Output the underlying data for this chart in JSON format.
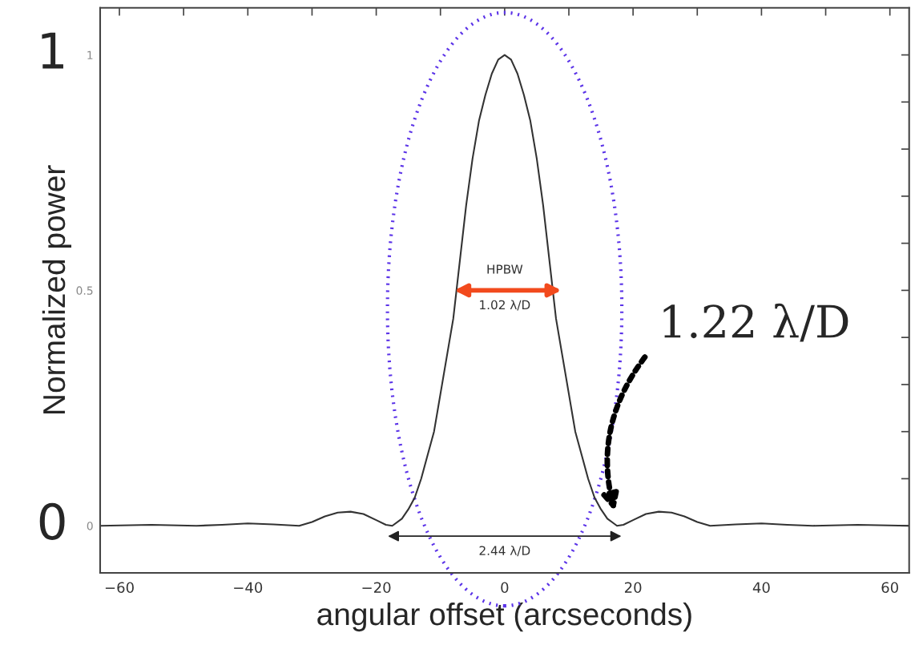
{
  "chart_data": {
    "type": "line",
    "xlabel": "angular offset (arcseconds)",
    "ylabel": "Normalized power",
    "series": [
      {
        "color": "#333333",
        "x": [
          -63,
          -55,
          -48,
          -44,
          -40,
          -36,
          -32,
          -30,
          -28,
          -26,
          -24,
          -22,
          -20,
          -18.5,
          -17.5,
          -16,
          -15,
          -14,
          -13,
          -12,
          -11,
          -10,
          -9,
          -8,
          -7.5,
          -6,
          -5,
          -4,
          -3,
          -2,
          -1,
          0,
          1,
          2,
          3,
          4,
          5,
          6,
          7.5,
          8,
          9,
          10,
          11,
          12,
          13,
          14,
          15,
          16,
          17.5,
          18.5,
          20,
          22,
          24,
          26,
          28,
          30,
          32,
          36,
          40,
          44,
          48,
          55,
          63
        ],
        "values": [
          0.0,
          0.002,
          0.0,
          0.002,
          0.005,
          0.003,
          0.0,
          0.008,
          0.02,
          0.028,
          0.03,
          0.025,
          0.012,
          0.002,
          0.0,
          0.015,
          0.035,
          0.06,
          0.1,
          0.15,
          0.2,
          0.28,
          0.36,
          0.44,
          0.5,
          0.68,
          0.78,
          0.86,
          0.915,
          0.96,
          0.99,
          1.0,
          0.99,
          0.96,
          0.915,
          0.86,
          0.78,
          0.68,
          0.5,
          0.44,
          0.36,
          0.28,
          0.2,
          0.15,
          0.1,
          0.06,
          0.035,
          0.015,
          0.0,
          0.002,
          0.012,
          0.025,
          0.03,
          0.028,
          0.02,
          0.008,
          0.0,
          0.003,
          0.005,
          0.002,
          0.0,
          0.002,
          0.0
        ]
      }
    ],
    "xlim": [
      -63,
      63
    ],
    "ylim": [
      -0.1,
      1.1
    ],
    "xticks": [
      {
        "value": -60,
        "label": "−60"
      },
      {
        "value": -50,
        "label": null
      },
      {
        "value": -40,
        "label": "−40"
      },
      {
        "value": -30,
        "label": null
      },
      {
        "value": -20,
        "label": "−20"
      },
      {
        "value": -10,
        "label": null
      },
      0,
      {
        "value": 10,
        "label": null
      },
      20,
      {
        "value": 30,
        "label": null
      },
      40,
      {
        "value": 50,
        "label": null
      },
      60
    ],
    "yticks": [
      0,
      {
        "value": 0.1,
        "label": null
      },
      {
        "value": 0.2,
        "label": null
      },
      {
        "value": 0.3,
        "label": null
      },
      {
        "value": 0.4,
        "label": null
      },
      0.5,
      {
        "value": 0.6,
        "label": null
      },
      {
        "value": 0.7,
        "label": null
      },
      {
        "value": 0.8,
        "label": null
      },
      {
        "value": 0.9,
        "label": null
      },
      1
    ],
    "annotations": [
      "HPBW",
      "1.02 λ/D",
      "2.44 λ/D",
      "1.22 λ/D",
      "1",
      "0"
    ]
  }
}
